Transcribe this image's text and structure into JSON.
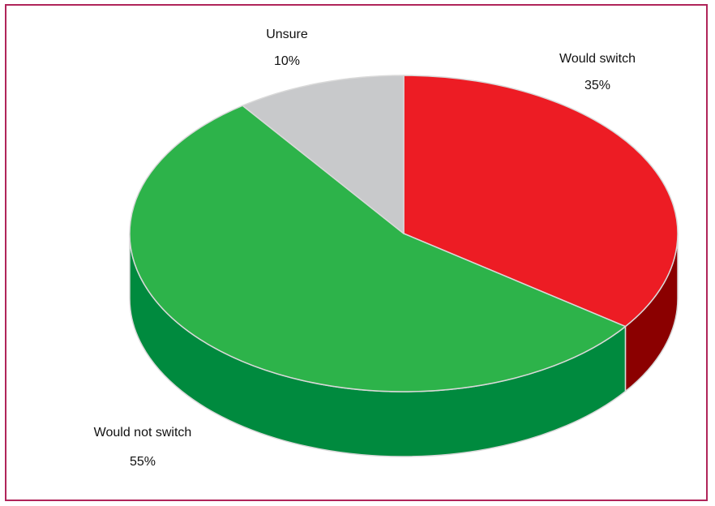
{
  "chart_data": {
    "type": "pie",
    "title": "",
    "slices": [
      {
        "name": "Would switch",
        "value": 35,
        "value_label": "35%",
        "color": "#ed1c24",
        "side_color": "#8b0000"
      },
      {
        "name": "Would not switch",
        "value": 55,
        "value_label": "55%",
        "color": "#2db34a",
        "side_color": "#008a3e"
      },
      {
        "name": "Unsure",
        "value": 10,
        "value_label": "10%",
        "color": "#c8c9cb",
        "side_color": "#8f9092"
      }
    ],
    "style": "3d",
    "legend": "none"
  }
}
